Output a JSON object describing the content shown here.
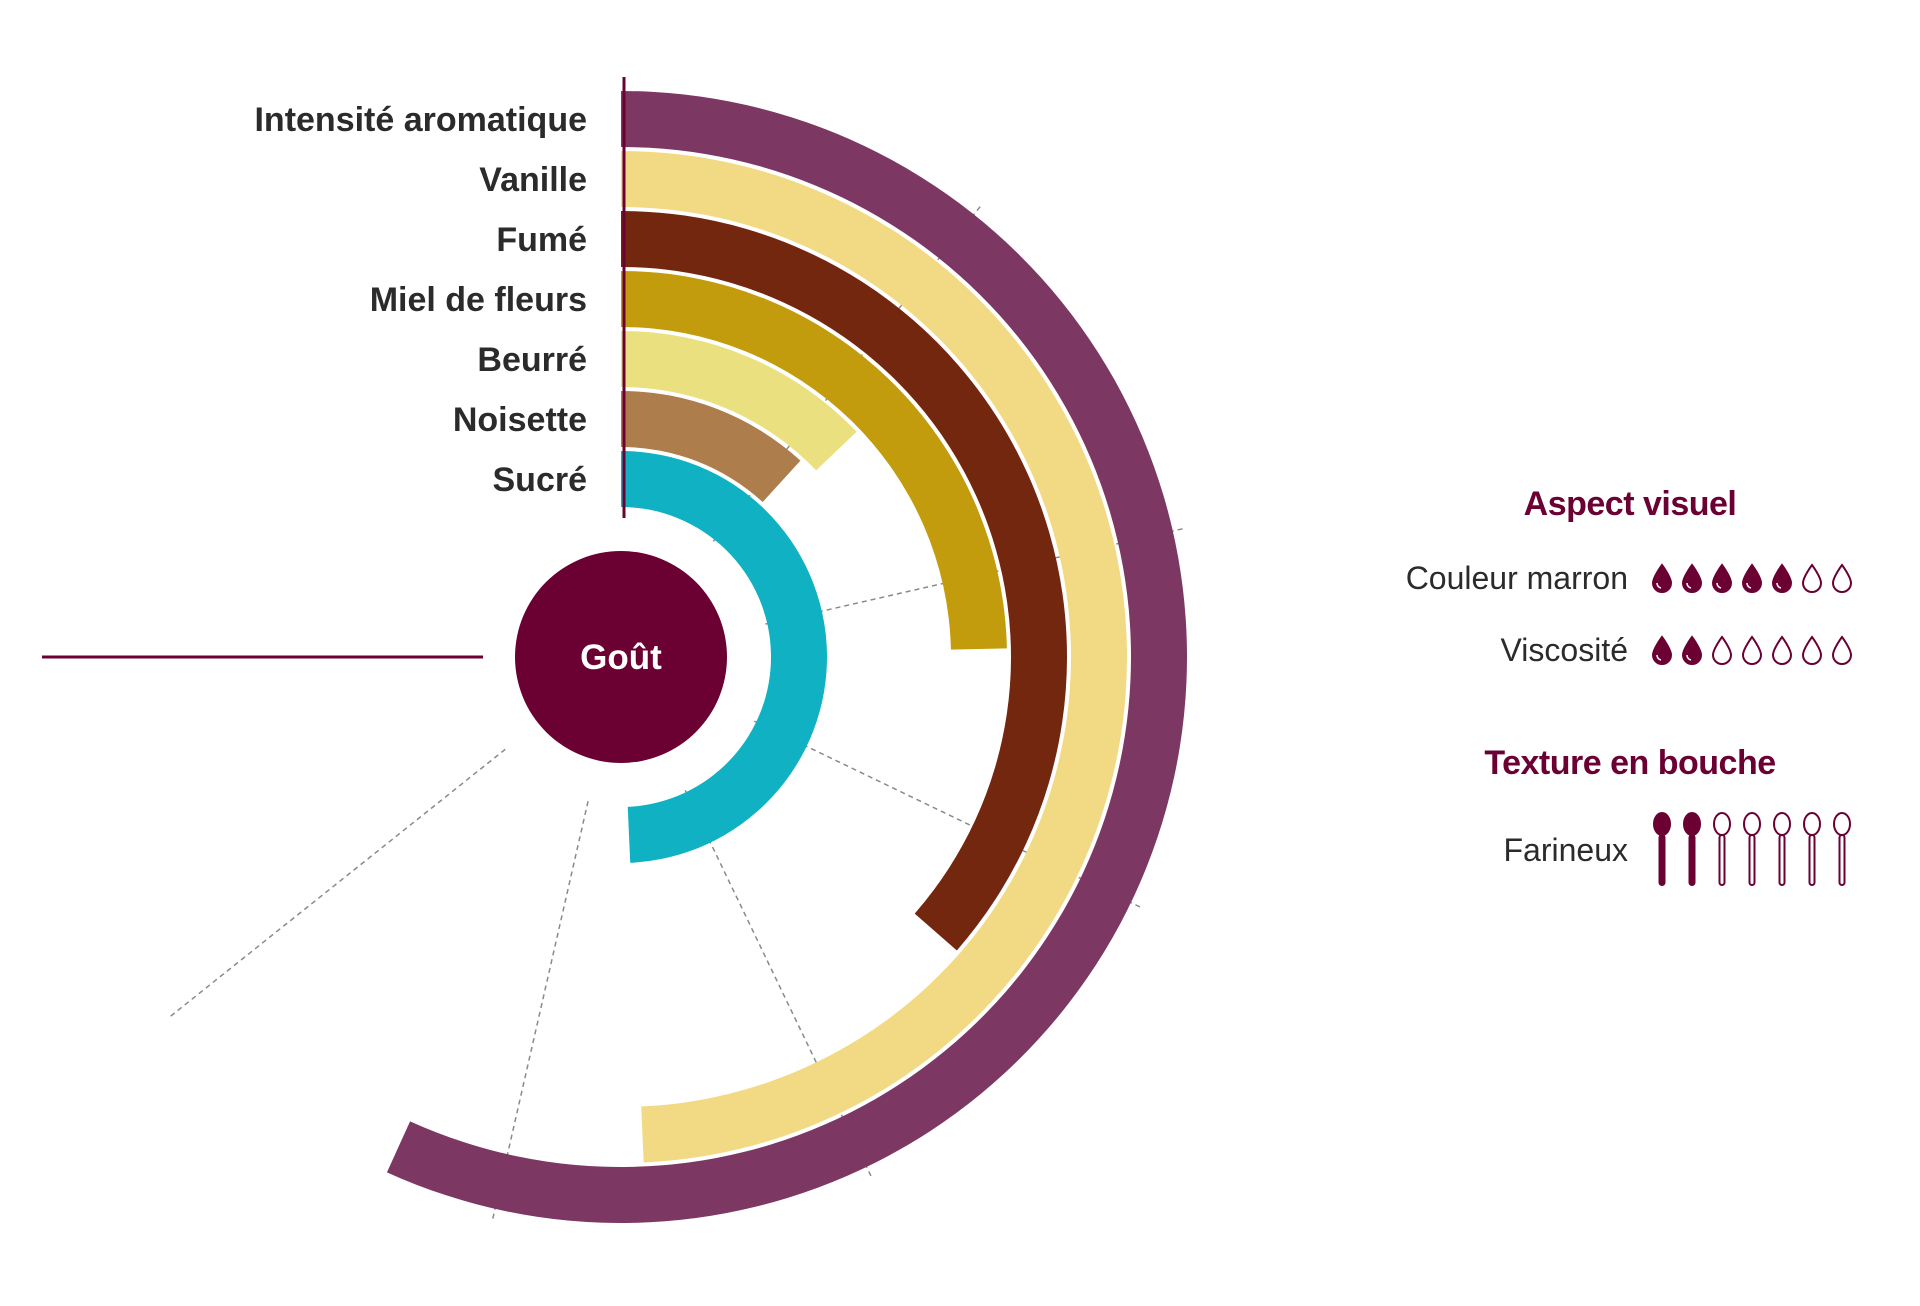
{
  "chart_data": {
    "type": "radial-bar",
    "center_label": "Goût",
    "scale_max": 7,
    "series": [
      {
        "name": "Intensité aromatique",
        "value": 5.3,
        "color": "#7c3762"
      },
      {
        "name": "Vanille",
        "value": 4.6,
        "color": "#f2da84"
      },
      {
        "name": "Fumé",
        "value": 3.4,
        "color": "#74270f"
      },
      {
        "name": "Miel de fleurs",
        "value": 2.3,
        "color": "#c29c0c"
      },
      {
        "name": "Beurré",
        "value": 1.2,
        "color": "#ebe07f"
      },
      {
        "name": "Noisette",
        "value": 1.1,
        "color": "#ae7d4c"
      },
      {
        "name": "Sucré",
        "value": 4.6,
        "color": "#10b1c2"
      }
    ],
    "center_color": "#6b0033",
    "grid": true
  },
  "side_panel": {
    "aspect_visuel": {
      "title": "Aspect visuel",
      "rows": [
        {
          "label": "Couleur marron",
          "value": 5,
          "max": 7,
          "icon": "drop-icon"
        },
        {
          "label": "Viscosité",
          "value": 2,
          "max": 7,
          "icon": "drop-icon"
        }
      ]
    },
    "texture": {
      "title": "Texture en bouche",
      "rows": [
        {
          "label": "Farineux",
          "value": 2,
          "max": 7,
          "icon": "spoon-icon"
        }
      ]
    },
    "accent_color": "#6b0033"
  }
}
